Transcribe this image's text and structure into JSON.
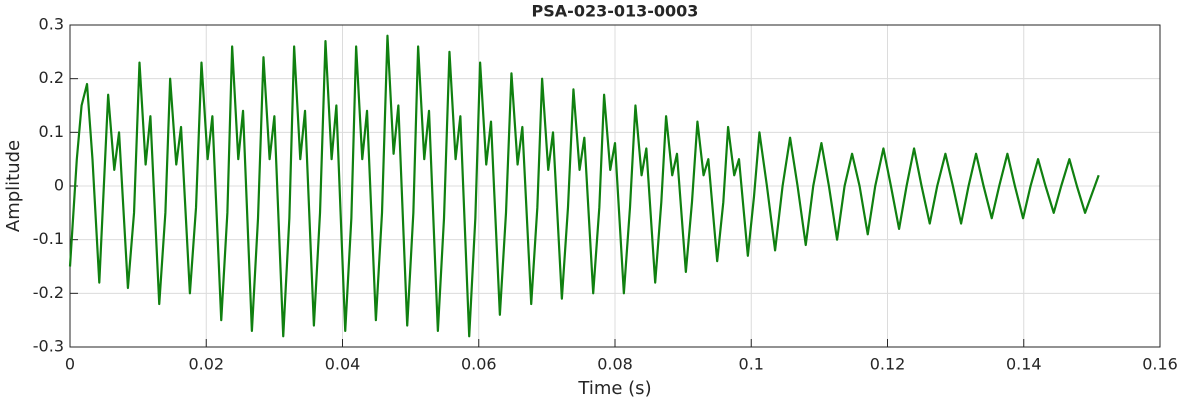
{
  "chart_data": {
    "type": "line",
    "title": "PSA-023-013-0003",
    "xlabel": "Time (s)",
    "ylabel": "Amplitude",
    "xlim": [
      0,
      0.16
    ],
    "xticks": [
      0,
      0.02,
      0.04,
      0.06,
      0.08,
      0.1,
      0.12,
      0.14,
      0.16
    ],
    "ylim": [
      -0.3,
      0.3
    ],
    "yticks": [
      -0.3,
      -0.2,
      -0.1,
      0,
      0.1,
      0.2,
      0.3
    ],
    "grid": true,
    "series": [
      {
        "color": "#108010",
        "x": [
          0,
          0.001,
          0.0017,
          0.0025,
          0.0033,
          0.0043,
          0.0056,
          0.0065,
          0.0072,
          0.0085,
          0.0094,
          0.0102,
          0.0111,
          0.0118,
          0.0131,
          0.014,
          0.0147,
          0.0156,
          0.0163,
          0.0176,
          0.0185,
          0.0193,
          0.0202,
          0.0209,
          0.0222,
          0.0231,
          0.0238,
          0.0247,
          0.0254,
          0.0267,
          0.0276,
          0.0284,
          0.0293,
          0.03,
          0.0313,
          0.0322,
          0.0329,
          0.0338,
          0.0345,
          0.0358,
          0.0367,
          0.0375,
          0.0384,
          0.0391,
          0.0404,
          0.0413,
          0.042,
          0.0429,
          0.0436,
          0.0449,
          0.0458,
          0.0466,
          0.0475,
          0.0482,
          0.0495,
          0.0504,
          0.0511,
          0.052,
          0.0527,
          0.054,
          0.0549,
          0.0557,
          0.0566,
          0.0573,
          0.0586,
          0.0595,
          0.0602,
          0.0611,
          0.0618,
          0.0631,
          0.064,
          0.0648,
          0.0657,
          0.0664,
          0.0677,
          0.0686,
          0.0693,
          0.0702,
          0.0709,
          0.0722,
          0.0731,
          0.0739,
          0.0748,
          0.0755,
          0.0768,
          0.0777,
          0.0784,
          0.0793,
          0.08,
          0.0813,
          0.0822,
          0.083,
          0.0839,
          0.0846,
          0.0859,
          0.0868,
          0.0875,
          0.0884,
          0.0891,
          0.0904,
          0.0913,
          0.0921,
          0.093,
          0.0937,
          0.095,
          0.0959,
          0.0966,
          0.0975,
          0.0982,
          0.0995,
          0.1004,
          0.1012,
          0.1023,
          0.1035,
          0.1046,
          0.1057,
          0.1068,
          0.108,
          0.1091,
          0.1103,
          0.1114,
          0.1126,
          0.1137,
          0.1148,
          0.1159,
          0.1171,
          0.1182,
          0.1194,
          0.1205,
          0.1217,
          0.1228,
          0.1239,
          0.125,
          0.1262,
          0.1273,
          0.1285,
          0.1296,
          0.1308,
          0.1319,
          0.133,
          0.1341,
          0.1353,
          0.1364,
          0.1376,
          0.1387,
          0.1399,
          0.141,
          0.1421,
          0.1432,
          0.1444,
          0.1455,
          0.1467,
          0.1478,
          0.149,
          0.151
        ],
        "values": [
          -0.15,
          0.05,
          0.15,
          0.19,
          0.05,
          -0.18,
          0.17,
          0.03,
          0.1,
          -0.19,
          -0.05,
          0.23,
          0.04,
          0.13,
          -0.22,
          -0.05,
          0.2,
          0.04,
          0.11,
          -0.2,
          -0.04,
          0.23,
          0.05,
          0.13,
          -0.25,
          -0.05,
          0.26,
          0.05,
          0.14,
          -0.27,
          -0.06,
          0.24,
          0.05,
          0.13,
          -0.28,
          -0.06,
          0.26,
          0.05,
          0.14,
          -0.26,
          -0.05,
          0.27,
          0.05,
          0.15,
          -0.27,
          -0.06,
          0.26,
          0.05,
          0.14,
          -0.25,
          -0.05,
          0.28,
          0.06,
          0.15,
          -0.26,
          -0.05,
          0.26,
          0.05,
          0.14,
          -0.27,
          -0.06,
          0.25,
          0.05,
          0.13,
          -0.28,
          -0.06,
          0.23,
          0.04,
          0.12,
          -0.24,
          -0.05,
          0.21,
          0.04,
          0.11,
          -0.22,
          -0.04,
          0.2,
          0.03,
          0.1,
          -0.21,
          -0.04,
          0.18,
          0.03,
          0.09,
          -0.2,
          -0.04,
          0.17,
          0.03,
          0.08,
          -0.2,
          -0.04,
          0.15,
          0.02,
          0.07,
          -0.18,
          -0.03,
          0.13,
          0.02,
          0.06,
          -0.16,
          -0.03,
          0.12,
          0.02,
          0.05,
          -0.14,
          -0.03,
          0.11,
          0.02,
          0.05,
          -0.13,
          -0.02,
          0.1,
          0,
          -0.12,
          0,
          0.09,
          0,
          -0.11,
          0,
          0.08,
          0,
          -0.1,
          0,
          0.06,
          0,
          -0.09,
          0,
          0.07,
          0,
          -0.08,
          0,
          0.07,
          0,
          -0.07,
          0,
          0.06,
          0,
          -0.07,
          0,
          0.06,
          0,
          -0.06,
          0,
          0.06,
          0,
          -0.06,
          0,
          0.05,
          0,
          -0.05,
          0,
          0.05,
          0,
          -0.05,
          0.02
        ]
      }
    ]
  }
}
